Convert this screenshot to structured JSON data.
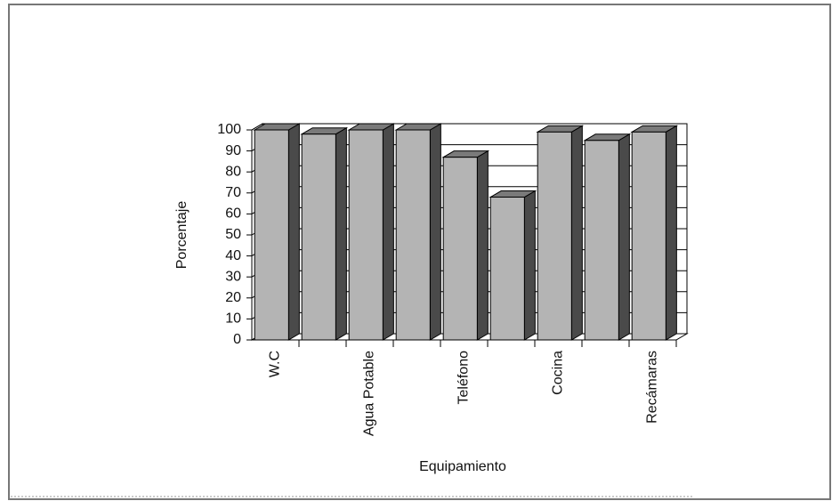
{
  "chart_data": {
    "type": "bar3d",
    "categories": [
      "W.C",
      null,
      "Agua Potable",
      null,
      "Teléfono",
      null,
      "Cocina",
      null,
      "Recámaras"
    ],
    "values": [
      100,
      98,
      100,
      100,
      87,
      68,
      99,
      95,
      99
    ],
    "ylabel": "Porcentaje",
    "xlabel": "Equipamiento",
    "ylim": [
      0,
      100
    ],
    "yticks": [
      0,
      10,
      20,
      30,
      40,
      50,
      60,
      70,
      80,
      90,
      100
    ],
    "grid": true,
    "color": "#b4b4b4"
  }
}
